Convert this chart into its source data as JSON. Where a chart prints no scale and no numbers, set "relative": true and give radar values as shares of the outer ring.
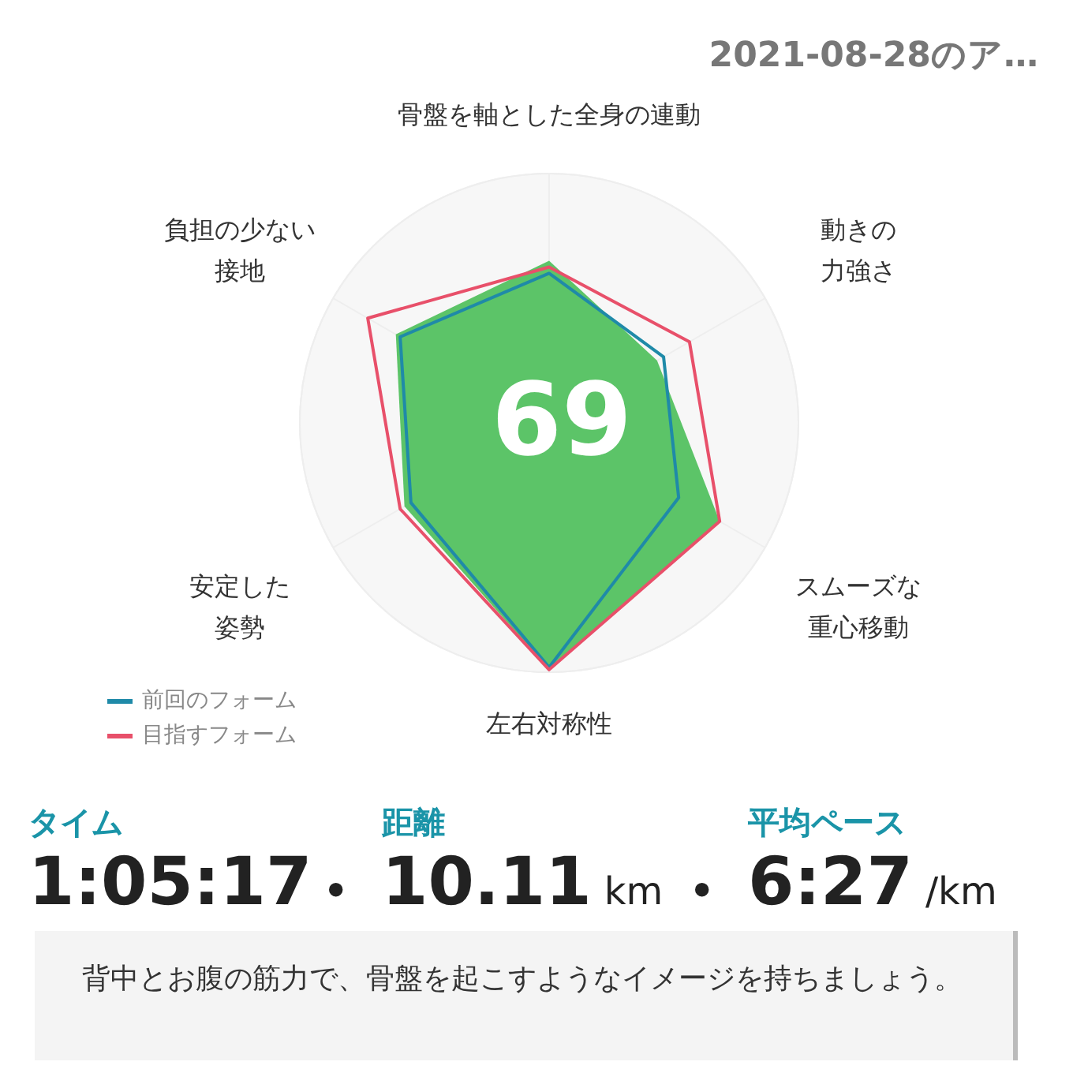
{
  "chart_data": {
    "type": "radar",
    "title": "2021-08-28のア…",
    "categories": [
      "骨盤を軸とした全身の連動",
      "動きの力強さ",
      "スムーズな重心移動",
      "左右対称性",
      "安定した姿勢",
      "負担の少ない接地"
    ],
    "relative": true,
    "grid": true,
    "legend": "bottom left",
    "series": [
      {
        "color": "#5cc468",
        "values": [
          0.65,
          0.5,
          0.79,
          0.99,
          0.67,
          0.71
        ]
      },
      {
        "name": "前回のフォーム",
        "color": "#1f8aa8",
        "values": [
          0.6,
          0.53,
          0.6,
          0.98,
          0.64,
          0.69
        ]
      },
      {
        "name": "目指すフォーム",
        "color": "#e8506a",
        "values": [
          0.625,
          0.65,
          0.79,
          0.99,
          0.69,
          0.84
        ]
      }
    ],
    "annotations": [
      "69",
      "タイム",
      "1:05:17",
      "•",
      "距離",
      "10.11",
      "km",
      "•",
      "平均ペース",
      "6:27",
      "/km",
      "背中とお腹の筋力で、骨盤を起こすようなイメージを持ちましょう。"
    ]
  }
}
